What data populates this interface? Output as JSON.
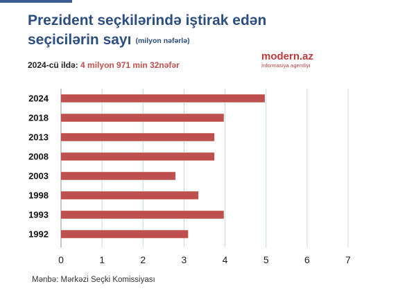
{
  "header": {
    "title_line1": "Prezident seçkilərində iştirak edən",
    "title_line2": "seçicilərin sayı",
    "unit": "(milyon nəfərlə)",
    "subtitle_prefix": "2024-cü ildə:",
    "subtitle_value": "4 milyon 971 min 32nəfər"
  },
  "logo": {
    "brand": "modern.az",
    "tagline": "İnformasiya agentliyi"
  },
  "footer": {
    "source": "Mənbə: Mərkəzi Seçki Komissiyası"
  },
  "colors": {
    "bar": "#c0504d",
    "title": "#2c4e80",
    "grid": "#c9d8ea",
    "accent": "#3b5f93"
  },
  "chart_data": {
    "type": "bar",
    "orientation": "horizontal",
    "categories": [
      "2024",
      "2018",
      "2013",
      "2008",
      "2003",
      "1998",
      "1993",
      "1992"
    ],
    "values": [
      4.97,
      3.97,
      3.74,
      3.74,
      2.79,
      3.35,
      3.97,
      3.1
    ],
    "xlim": [
      0,
      7
    ],
    "xticks": [
      "0",
      "1",
      "2",
      "3",
      "4",
      "5",
      "6",
      "7"
    ],
    "grid": "vertical"
  }
}
